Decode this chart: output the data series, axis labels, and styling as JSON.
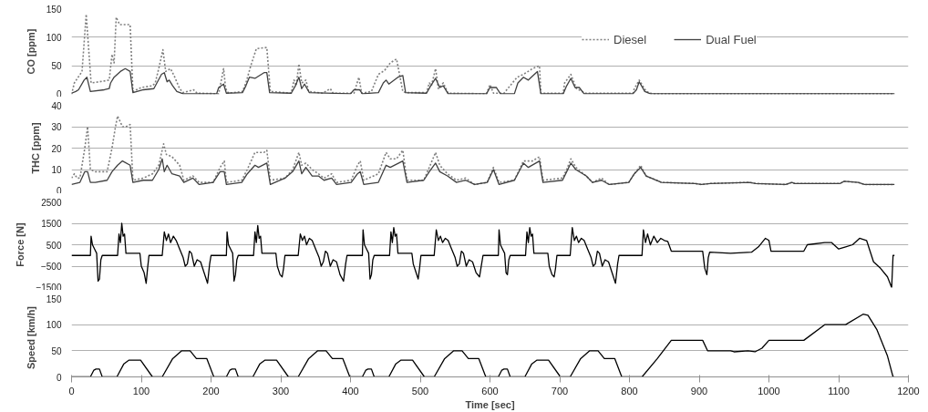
{
  "chart_data": [
    {
      "type": "line",
      "ylabel": "CO [ppm]",
      "xlim": [
        0,
        1200
      ],
      "xticks": [
        0,
        100,
        200,
        300,
        400,
        500,
        600,
        700,
        800,
        900,
        1000,
        1100,
        1200
      ],
      "ylim": [
        0,
        150
      ],
      "yticks": [
        0,
        50,
        100,
        150
      ],
      "grid": "y",
      "tick_labels": "y",
      "legend": "top right",
      "series": [
        {
          "name": "Diesel",
          "color": "#7f7f7f",
          "line_style": "dotted",
          "x": [
            0,
            4,
            15,
            21,
            28,
            40,
            54,
            58,
            61,
            64,
            69,
            84,
            88,
            100,
            116,
            120,
            125,
            131,
            135,
            142,
            148,
            155,
            160,
            175,
            180,
            211,
            218,
            221,
            225,
            245,
            250,
            257,
            265,
            280,
            285,
            315,
            319,
            322,
            326,
            330,
            336,
            340,
            360,
            371,
            375,
            405,
            412,
            416,
            430,
            440,
            449,
            457,
            466,
            475,
            479,
            509,
            513,
            516,
            522,
            526,
            533,
            540,
            595,
            600,
            605,
            620,
            639,
            648,
            661,
            671,
            673,
            705,
            707,
            716,
            724,
            737,
            805,
            807,
            814,
            824,
            833,
            1180
          ],
          "values": [
            0,
            20,
            40,
            140,
            20,
            22,
            25,
            70,
            55,
            135,
            122,
            122,
            5,
            12,
            15,
            20,
            45,
            78,
            40,
            45,
            30,
            10,
            3,
            8,
            2,
            1,
            45,
            10,
            2,
            5,
            20,
            50,
            80,
            82,
            5,
            2,
            25,
            15,
            53,
            20,
            25,
            5,
            2,
            10,
            2,
            2,
            30,
            2,
            5,
            35,
            42,
            55,
            62,
            5,
            3,
            3,
            20,
            15,
            45,
            10,
            20,
            2,
            1,
            17,
            2,
            2,
            30,
            35,
            45,
            50,
            2,
            2,
            20,
            35,
            10,
            2,
            2,
            10,
            25,
            5,
            1,
            1
          ]
        },
        {
          "name": "Dual Fuel",
          "color": "#404040",
          "line_style": "solid",
          "x": [
            0,
            6,
            10,
            18,
            22,
            27,
            47,
            54,
            56,
            61,
            70,
            77,
            84,
            88,
            103,
            118,
            129,
            133,
            137,
            140,
            145,
            151,
            160,
            208,
            211,
            218,
            222,
            245,
            250,
            255,
            263,
            276,
            280,
            284,
            315,
            321,
            326,
            330,
            334,
            341,
            400,
            405,
            413,
            417,
            440,
            447,
            451,
            455,
            468,
            475,
            479,
            509,
            515,
            522,
            528,
            533,
            540,
            595,
            600,
            609,
            615,
            635,
            640,
            648,
            655,
            668,
            673,
            705,
            710,
            716,
            722,
            728,
            735,
            805,
            810,
            814,
            822,
            830,
            1180
          ],
          "values": [
            2,
            5,
            8,
            25,
            30,
            5,
            8,
            10,
            20,
            30,
            40,
            45,
            40,
            3,
            8,
            10,
            35,
            38,
            22,
            25,
            15,
            5,
            1,
            1,
            12,
            18,
            2,
            3,
            15,
            30,
            28,
            38,
            38,
            3,
            2,
            15,
            30,
            10,
            18,
            3,
            1,
            8,
            8,
            1,
            3,
            20,
            25,
            18,
            30,
            33,
            3,
            2,
            15,
            28,
            12,
            15,
            1,
            1,
            12,
            12,
            1,
            1,
            20,
            30,
            25,
            40,
            1,
            1,
            15,
            28,
            12,
            12,
            1,
            1,
            8,
            22,
            5,
            1,
            1
          ]
        }
      ]
    },
    {
      "type": "line",
      "ylabel": "THC [ppm]",
      "xlim": [
        0,
        1200
      ],
      "xticks": [
        0,
        100,
        200,
        300,
        400,
        500,
        600,
        700,
        800,
        900,
        1000,
        1100,
        1200
      ],
      "ylim": [
        0,
        40
      ],
      "yticks": [
        0,
        10,
        20,
        30,
        40
      ],
      "grid": "y",
      "tick_labels": "y",
      "series": [
        {
          "color": "#7f7f7f",
          "line_style": "dotted",
          "x": [
            0,
            4,
            8,
            12,
            19,
            23,
            27,
            34,
            51,
            58,
            63,
            66,
            73,
            78,
            84,
            88,
            103,
            116,
            125,
            132,
            136,
            144,
            155,
            161,
            174,
            183,
            203,
            213,
            219,
            222,
            244,
            252,
            263,
            276,
            280,
            285,
            306,
            317,
            326,
            330,
            336,
            345,
            354,
            362,
            373,
            380,
            401,
            410,
            414,
            419,
            440,
            451,
            457,
            466,
            475,
            481,
            505,
            513,
            522,
            528,
            539,
            552,
            565,
            578,
            596,
            605,
            613,
            635,
            648,
            661,
            671,
            676,
            704,
            710,
            716,
            723,
            738,
            747,
            760,
            771,
            799,
            807,
            816,
            824,
            846,
            894,
            903,
            916,
            972,
            981,
            1024,
            1033,
            1037,
            1102,
            1108,
            1128,
            1137,
            1180
          ],
          "values": [
            6,
            8,
            6,
            6,
            20,
            30,
            10,
            9,
            9,
            20,
            30,
            35,
            30,
            30,
            31,
            5,
            6,
            8,
            12,
            22,
            17,
            16,
            12,
            5,
            7,
            4,
            4,
            11,
            14,
            4,
            5,
            10,
            18,
            18,
            19,
            5,
            6,
            10,
            18,
            12,
            13,
            10,
            8,
            6,
            8,
            4,
            5,
            12,
            14,
            5,
            8,
            18,
            15,
            15,
            19,
            5,
            5,
            11,
            18,
            12,
            8,
            5,
            6,
            3,
            4,
            11,
            4,
            5,
            14,
            14,
            16,
            5,
            6,
            10,
            15,
            11,
            7,
            4,
            6,
            3,
            4,
            8,
            12,
            7,
            4,
            3.5,
            3,
            3.5,
            4,
            3.5,
            3,
            4,
            3.5,
            3.5,
            4.5,
            4,
            3,
            3
          ]
        },
        {
          "color": "#404040",
          "line_style": "solid",
          "x": [
            0,
            12,
            19,
            23,
            27,
            34,
            51,
            58,
            66,
            73,
            84,
            88,
            103,
            116,
            125,
            130,
            133,
            137,
            144,
            155,
            161,
            174,
            183,
            203,
            213,
            219,
            222,
            244,
            252,
            263,
            268,
            280,
            285,
            306,
            317,
            326,
            330,
            336,
            345,
            354,
            362,
            373,
            380,
            401,
            410,
            414,
            419,
            440,
            451,
            457,
            475,
            481,
            505,
            513,
            522,
            528,
            539,
            552,
            565,
            578,
            596,
            605,
            613,
            635,
            648,
            655,
            671,
            676,
            704,
            710,
            716,
            723,
            738,
            747,
            760,
            771,
            799,
            807,
            816,
            824,
            846,
            894,
            903,
            916,
            972,
            981,
            1024,
            1033,
            1037,
            1102,
            1108,
            1128,
            1137,
            1180
          ],
          "values": [
            3,
            4,
            9,
            9,
            4,
            4,
            5,
            9,
            12,
            14,
            12,
            4,
            5,
            5,
            10,
            15,
            9,
            12,
            8,
            7,
            4,
            6,
            3,
            4,
            9,
            9,
            3,
            4,
            8,
            12,
            11,
            13,
            3,
            6,
            9,
            14,
            8,
            11,
            7,
            7,
            5,
            6,
            3,
            4,
            8,
            9,
            3,
            4,
            12,
            11,
            14,
            4,
            5,
            9,
            13,
            9,
            7,
            4,
            5,
            3,
            4,
            10,
            3,
            5,
            13,
            11,
            14,
            4,
            5,
            9,
            13,
            10,
            7,
            4,
            5,
            3,
            4,
            8,
            11,
            7,
            4,
            3.5,
            3,
            3.5,
            4,
            3.5,
            3,
            4,
            3.5,
            3.5,
            4.5,
            4,
            3,
            3
          ]
        }
      ]
    },
    {
      "type": "line",
      "ylabel": "Force [N]",
      "xlim": [
        0,
        1200
      ],
      "xticks": [
        0,
        100,
        200,
        300,
        400,
        500,
        600,
        700,
        800,
        900,
        1000,
        1100,
        1200
      ],
      "ylim": [
        -1500,
        2500
      ],
      "yticks": [
        -1500,
        -500,
        500,
        1500,
        2500
      ],
      "grid": "y",
      "tick_labels": "y",
      "series": [
        {
          "color": "#000000",
          "line_style": "solid",
          "x": [
            0,
            27,
            28,
            30,
            33,
            36,
            38,
            40,
            42,
            44,
            66,
            68,
            70,
            72,
            74,
            76,
            78,
            98,
            100,
            104,
            107,
            109,
            111,
            130,
            133,
            136,
            139,
            142,
            146,
            150,
            155,
            160,
            163,
            166,
            169,
            172,
            176,
            180,
            185,
            190,
            195,
            198,
            200,
            222,
            223,
            225,
            228,
            231,
            233,
            235,
            237,
            239,
            261,
            263,
            265,
            267,
            269,
            271,
            273,
            293,
            295,
            299,
            302,
            304,
            306,
            325,
            328,
            331,
            334,
            337,
            341,
            345,
            350,
            355,
            358,
            361,
            364,
            367,
            371,
            375,
            380,
            385,
            390,
            393,
            395,
            417,
            418,
            420,
            423,
            426,
            428,
            430,
            432,
            434,
            456,
            458,
            460,
            462,
            464,
            466,
            468,
            488,
            490,
            494,
            497,
            499,
            501,
            520,
            523,
            526,
            529,
            532,
            536,
            540,
            545,
            550,
            553,
            556,
            559,
            562,
            566,
            570,
            575,
            580,
            585,
            588,
            590,
            612,
            613,
            615,
            618,
            621,
            623,
            625,
            627,
            629,
            651,
            653,
            655,
            657,
            659,
            661,
            663,
            683,
            685,
            689,
            692,
            694,
            696,
            715,
            718,
            721,
            724,
            727,
            731,
            735,
            740,
            745,
            748,
            751,
            754,
            757,
            761,
            765,
            770,
            775,
            780,
            783,
            785,
            818,
            820,
            823,
            826,
            830,
            835,
            840,
            845,
            850,
            855,
            860,
            905,
            908,
            911,
            913,
            915,
            945,
            975,
            985,
            995,
            1000,
            1003,
            1050,
            1055,
            1080,
            1090,
            1100,
            1110,
            1120,
            1130,
            1140,
            1145,
            1150,
            1160,
            1170,
            1176,
            1178,
            1180
          ],
          "values": [
            0,
            0,
            900,
            500,
            300,
            100,
            -1200,
            -1100,
            -200,
            0,
            0,
            1000,
            600,
            1500,
            900,
            1000,
            100,
            100,
            -500,
            -800,
            -1300,
            -600,
            0,
            0,
            1100,
            700,
            1000,
            600,
            900,
            700,
            300,
            -100,
            -500,
            -400,
            200,
            100,
            -500,
            -200,
            -300,
            -800,
            -1300,
            -400,
            0,
            0,
            1100,
            500,
            300,
            100,
            -1200,
            -900,
            -200,
            0,
            0,
            1100,
            600,
            1400,
            800,
            900,
            100,
            100,
            -500,
            -900,
            -1000,
            -600,
            0,
            0,
            1000,
            700,
            900,
            500,
            800,
            700,
            300,
            -100,
            -500,
            -300,
            200,
            100,
            -500,
            -200,
            -300,
            -900,
            -1200,
            -400,
            0,
            0,
            1200,
            500,
            300,
            100,
            -1100,
            -900,
            -200,
            0,
            0,
            1100,
            600,
            1300,
            900,
            1000,
            100,
            100,
            -400,
            -800,
            -1100,
            -600,
            0,
            0,
            1200,
            700,
            900,
            600,
            800,
            700,
            300,
            -100,
            -500,
            -400,
            200,
            100,
            -500,
            -200,
            -300,
            -800,
            -1000,
            -400,
            0,
            0,
            1200,
            500,
            300,
            100,
            -800,
            -900,
            -200,
            0,
            0,
            1100,
            600,
            1300,
            900,
            1000,
            100,
            100,
            -500,
            -900,
            -1000,
            -600,
            0,
            0,
            1300,
            700,
            900,
            600,
            800,
            700,
            300,
            -100,
            -500,
            -400,
            200,
            100,
            -500,
            -200,
            -300,
            -800,
            -1300,
            -400,
            0,
            0,
            1200,
            600,
            1000,
            500,
            900,
            600,
            800,
            700,
            650,
            200,
            200,
            -600,
            -900,
            -100,
            150,
            100,
            150,
            400,
            800,
            700,
            200,
            200,
            500,
            600,
            600,
            300,
            400,
            500,
            800,
            700,
            200,
            -300,
            -600,
            -1000,
            -1500,
            0,
            0
          ]
        }
      ]
    },
    {
      "type": "line",
      "ylabel": "Speed [km/h]",
      "xlabel": "Time [sec]",
      "xlim": [
        0,
        1200
      ],
      "xticks": [
        0,
        100,
        200,
        300,
        400,
        500,
        600,
        700,
        800,
        900,
        1000,
        1100,
        1200
      ],
      "ylim": [
        0,
        150
      ],
      "yticks": [
        0,
        50,
        100,
        150
      ],
      "grid": "y",
      "series": [
        {
          "color": "#000000",
          "line_style": "solid",
          "x": [
            0,
            27,
            32,
            35,
            40,
            44,
            65,
            75,
            82,
            99,
            116,
            130,
            145,
            158,
            170,
            179,
            194,
            204,
            222,
            227,
            230,
            235,
            239,
            260,
            270,
            277,
            294,
            311,
            325,
            340,
            353,
            365,
            374,
            389,
            399,
            417,
            422,
            425,
            430,
            434,
            455,
            465,
            472,
            489,
            506,
            520,
            535,
            548,
            560,
            569,
            584,
            594,
            612,
            617,
            620,
            625,
            629,
            650,
            660,
            667,
            684,
            701,
            715,
            730,
            743,
            755,
            764,
            779,
            789,
            818,
            840,
            860,
            905,
            912,
            945,
            950,
            970,
            980,
            990,
            1000,
            1050,
            1080,
            1110,
            1135,
            1142,
            1155,
            1170,
            1178,
            1180
          ],
          "values": [
            0,
            0,
            13,
            15,
            15,
            0,
            0,
            25,
            32,
            32,
            0,
            0,
            35,
            50,
            50,
            35,
            35,
            0,
            0,
            13,
            15,
            15,
            0,
            0,
            25,
            32,
            32,
            0,
            0,
            35,
            50,
            50,
            35,
            35,
            0,
            0,
            13,
            15,
            15,
            0,
            0,
            25,
            32,
            32,
            0,
            0,
            35,
            50,
            50,
            35,
            35,
            0,
            0,
            13,
            15,
            15,
            0,
            0,
            25,
            32,
            32,
            0,
            0,
            35,
            50,
            50,
            35,
            35,
            0,
            0,
            35,
            70,
            70,
            50,
            50,
            48,
            50,
            48,
            55,
            70,
            70,
            100,
            100,
            120,
            118,
            90,
            40,
            0,
            0
          ]
        }
      ]
    }
  ]
}
